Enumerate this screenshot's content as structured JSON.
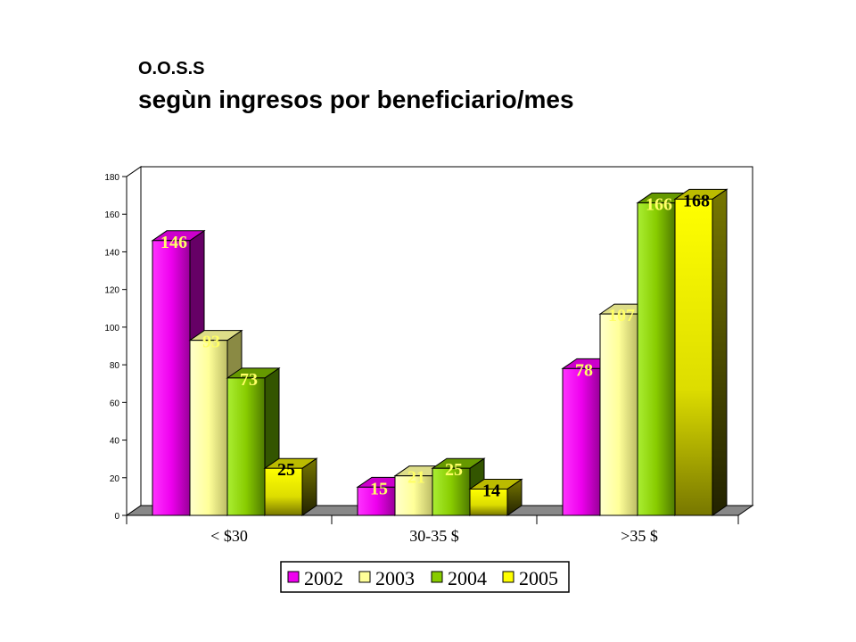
{
  "header": {
    "title": "O.O.S.S",
    "subtitle": "segùn ingresos por beneficiario/mes"
  },
  "chart_data": {
    "type": "bar",
    "categories": [
      "< $30",
      "30-35  $",
      ">35  $"
    ],
    "series": [
      {
        "name": "2002",
        "values": [
          146,
          15,
          78
        ],
        "color": "#ee00ee",
        "label_color": "#ffff66"
      },
      {
        "name": "2003",
        "values": [
          93,
          21,
          107
        ],
        "color": "#ffff99",
        "label_color": "#ffff66"
      },
      {
        "name": "2004",
        "values": [
          73,
          25,
          166
        ],
        "color": "#88cc00",
        "label_color": "#ffff66"
      },
      {
        "name": "2005",
        "values": [
          25,
          14,
          168
        ],
        "color": "#ffff00",
        "label_color": "#000000"
      }
    ],
    "ylim": [
      0,
      180
    ],
    "yticks": [
      0,
      20,
      40,
      60,
      80,
      100,
      120,
      140,
      160,
      180
    ],
    "grid": true,
    "legend_position": "bottom"
  }
}
